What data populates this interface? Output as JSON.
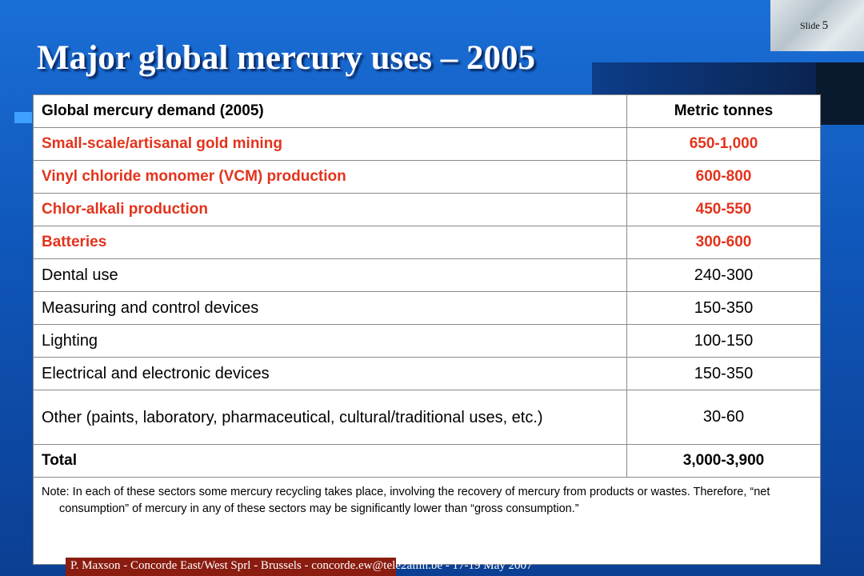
{
  "slide": {
    "label": "Slide",
    "number": "5"
  },
  "title": "Major global mercury uses – 2005",
  "table": {
    "headers": [
      "Global mercury demand (2005)",
      "Metric tonnes"
    ],
    "rows": [
      {
        "use": "Small-scale/artisanal gold mining",
        "tonnes": "650-1,000"
      },
      {
        "use": "Vinyl chloride monomer (VCM) production",
        "tonnes": "600-800"
      },
      {
        "use": "Chlor-alkali production",
        "tonnes": "450-550"
      },
      {
        "use": "Batteries",
        "tonnes": "300-600"
      },
      {
        "use": "Dental use",
        "tonnes": "240-300"
      },
      {
        "use": "Measuring and control devices",
        "tonnes": "150-350"
      },
      {
        "use": "Lighting",
        "tonnes": "100-150"
      },
      {
        "use": "Electrical and electronic devices",
        "tonnes": "150-350"
      },
      {
        "use": "Other (paints, laboratory, pharmaceutical, cultural/traditional uses, etc.)",
        "tonnes": "30-60"
      }
    ],
    "total": {
      "label": "Total",
      "tonnes": "3,000-3,900"
    },
    "note": "Note: In each of these sectors some mercury recycling takes place, involving the recovery of mercury from products or wastes.  Therefore, “net consumption” of mercury in any of these sectors may be significantly lower than “gross consumption.”"
  },
  "footer": "P. Maxson - Concorde East/West Sprl - Brussels - concorde.ew@tele2allin.be - 17-19 May 2007",
  "colors": {
    "highlight_text": "#e3331c",
    "background": "#1565c0",
    "footer_band": "#8a1c10"
  }
}
